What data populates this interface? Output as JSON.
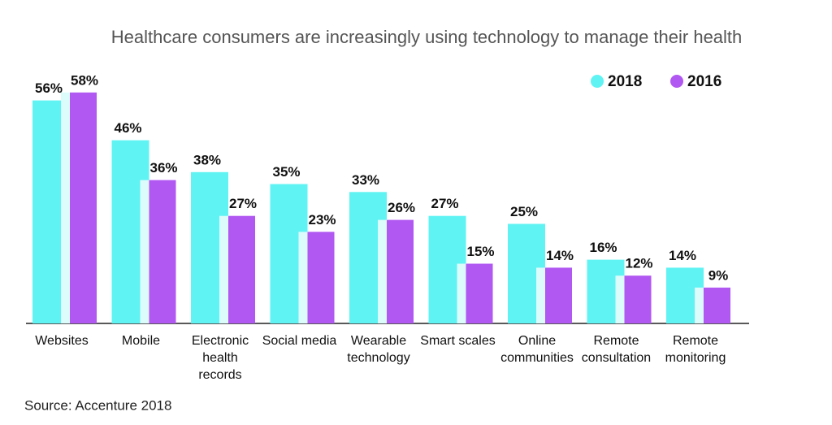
{
  "chart_data": {
    "type": "bar",
    "title": "Healthcare consumers are increasingly using technology to manage their health",
    "categories": [
      "Websites",
      "Mobile",
      "Electronic health records",
      "Social media",
      "Wearable technology",
      "Smart scales",
      "Online communities",
      "Remote consultation",
      "Remote monitoring"
    ],
    "series": [
      {
        "name": "2018",
        "color": "#5ff3f3",
        "values": [
          56,
          46,
          38,
          35,
          33,
          27,
          25,
          16,
          14
        ],
        "value_labels": [
          "56%",
          "46%",
          "38%",
          "35%",
          "33%",
          "27%",
          "25%",
          "16%",
          "14%"
        ]
      },
      {
        "name": "2016",
        "color": "#b157f2",
        "values": [
          58,
          36,
          27,
          23,
          26,
          15,
          14,
          12,
          9
        ],
        "value_labels": [
          "58%",
          "36%",
          "27%",
          "23%",
          "26%",
          "15%",
          "14%",
          "12%",
          "9%"
        ]
      }
    ],
    "legend": "top-right",
    "source": "Source: Accenture 2018"
  }
}
